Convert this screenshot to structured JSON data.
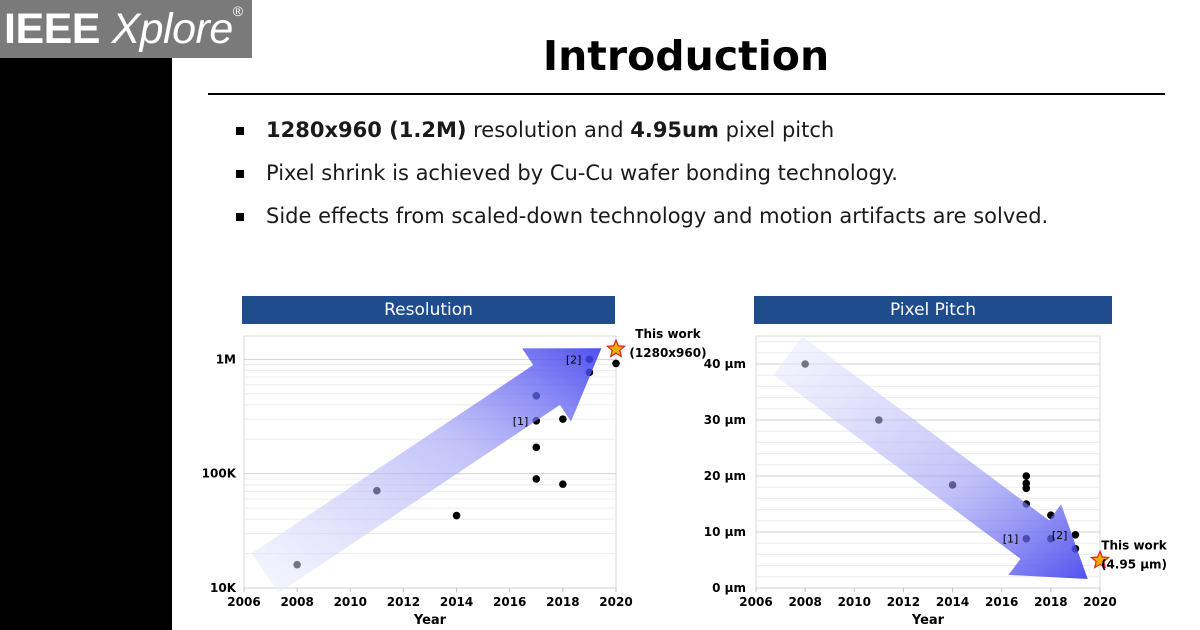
{
  "brand": {
    "name": "IEEE",
    "product": "Xplore",
    "reg": "®"
  },
  "slide": {
    "title": "Introduction",
    "bullets": [
      {
        "b1": "1280x960 (1.2M)",
        "t1": " resolution and ",
        "b2": "4.95um",
        "t2": " pixel pitch"
      },
      {
        "t1": "Pixel shrink is achieved by Cu-Cu wafer bonding technology."
      },
      {
        "t1": "Side effects from scaled-down technology and motion artifacts are solved."
      }
    ]
  },
  "colors": {
    "header": "#1f4c8c",
    "point": "#000000",
    "star": "#f0b000",
    "star_outline": "#e02020",
    "arrow": "#3a3aee"
  },
  "chart_data": [
    {
      "type": "scatter",
      "title": "Resolution",
      "xlabel": "Year",
      "ylabel": "",
      "xlim": [
        2006,
        2020
      ],
      "xticks": [
        2006,
        2008,
        2010,
        2012,
        2014,
        2016,
        2018,
        2020
      ],
      "ylog": true,
      "ylim": [
        10000,
        1600000
      ],
      "yticks": [
        {
          "value": 10000,
          "label": "10K"
        },
        {
          "value": 100000,
          "label": "100K"
        },
        {
          "value": 1000000,
          "label": "1M"
        }
      ],
      "points": [
        {
          "x": 2008,
          "y": 16000
        },
        {
          "x": 2011,
          "y": 71000
        },
        {
          "x": 2014,
          "y": 43000
        },
        {
          "x": 2017,
          "y": 480000
        },
        {
          "x": 2017,
          "y": 290000,
          "label": "[1]"
        },
        {
          "x": 2017,
          "y": 170000
        },
        {
          "x": 2017,
          "y": 90000
        },
        {
          "x": 2018,
          "y": 300000
        },
        {
          "x": 2018,
          "y": 81000
        },
        {
          "x": 2019,
          "y": 1000000,
          "label": "[2]"
        },
        {
          "x": 2019,
          "y": 770000
        },
        {
          "x": 2020,
          "y": 920000
        }
      ],
      "highlight": {
        "x": 2020,
        "y": 1228800,
        "label_line1": "This work",
        "label_line2": "(1280x960)"
      },
      "trend": "increasing"
    },
    {
      "type": "scatter",
      "title": "Pixel Pitch",
      "xlabel": "Year",
      "ylabel": "",
      "xlim": [
        2006,
        2020
      ],
      "xticks": [
        2006,
        2008,
        2010,
        2012,
        2014,
        2016,
        2018,
        2020
      ],
      "ylim": [
        0,
        45
      ],
      "yticks": [
        {
          "value": 0,
          "label": "0 µm"
        },
        {
          "value": 10,
          "label": "10 µm"
        },
        {
          "value": 20,
          "label": "20 µm"
        },
        {
          "value": 30,
          "label": "30 µm"
        },
        {
          "value": 40,
          "label": "40 µm"
        }
      ],
      "points": [
        {
          "x": 2008,
          "y": 40
        },
        {
          "x": 2011,
          "y": 30
        },
        {
          "x": 2014,
          "y": 18.4
        },
        {
          "x": 2017,
          "y": 20
        },
        {
          "x": 2017,
          "y": 18.7
        },
        {
          "x": 2017,
          "y": 17.8
        },
        {
          "x": 2017,
          "y": 15
        },
        {
          "x": 2017,
          "y": 8.8,
          "label": "[1]"
        },
        {
          "x": 2018,
          "y": 13
        },
        {
          "x": 2018,
          "y": 8.8
        },
        {
          "x": 2019,
          "y": 9.5,
          "label": "[2]"
        },
        {
          "x": 2019,
          "y": 7
        }
      ],
      "highlight": {
        "x": 2020,
        "y": 4.95,
        "label_line1": "This work",
        "label_line2": "(4.95 µm)"
      },
      "trend": "decreasing"
    }
  ]
}
